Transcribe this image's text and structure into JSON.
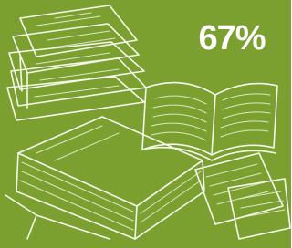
{
  "stat": {
    "label": "67%"
  }
}
